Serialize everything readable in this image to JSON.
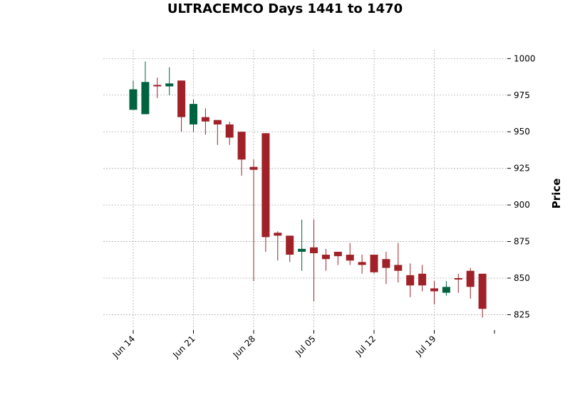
{
  "chart_data": {
    "type": "candlestick",
    "title": "ULTRACEMCO Days 1441 to 1470",
    "xlabel": "",
    "ylabel": "Price",
    "ylim": [
      815,
      1006
    ],
    "y_ticks": [
      825,
      850,
      875,
      900,
      925,
      950,
      975,
      1000
    ],
    "x_ticks": [
      {
        "label": "Jun 14",
        "index": 0
      },
      {
        "label": "Jun 21",
        "index": 5
      },
      {
        "label": "Jun 28",
        "index": 10
      },
      {
        "label": "Jul 05",
        "index": 15
      },
      {
        "label": "Jul 12",
        "index": 20
      },
      {
        "label": "Jul 19",
        "index": 25
      },
      {
        "label": "",
        "index": 30
      }
    ],
    "grid": true,
    "colors": {
      "up": "#006340",
      "down": "#a02128",
      "grid": "#b0b0b0"
    },
    "candles": [
      {
        "open": 965,
        "high": 985,
        "low": 965,
        "close": 979
      },
      {
        "open": 962,
        "high": 998,
        "low": 962,
        "close": 984
      },
      {
        "open": 982,
        "high": 987,
        "low": 973,
        "close": 981
      },
      {
        "open": 981,
        "high": 994,
        "low": 975,
        "close": 983
      },
      {
        "open": 985,
        "high": 985,
        "low": 950,
        "close": 960
      },
      {
        "open": 955,
        "high": 972,
        "low": 950,
        "close": 969
      },
      {
        "open": 960,
        "high": 966,
        "low": 948,
        "close": 957
      },
      {
        "open": 958,
        "high": 958,
        "low": 941,
        "close": 955
      },
      {
        "open": 955,
        "high": 957,
        "low": 941,
        "close": 946
      },
      {
        "open": 950,
        "high": 950,
        "low": 920,
        "close": 931
      },
      {
        "open": 926,
        "high": 931,
        "low": 848,
        "close": 924
      },
      {
        "open": 949,
        "high": 949,
        "low": 868,
        "close": 878
      },
      {
        "open": 881,
        "high": 882,
        "low": 862,
        "close": 879
      },
      {
        "open": 879,
        "high": 879,
        "low": 861,
        "close": 866
      },
      {
        "open": 868,
        "high": 890,
        "low": 855,
        "close": 870
      },
      {
        "open": 871,
        "high": 890,
        "low": 834,
        "close": 867
      },
      {
        "open": 866,
        "high": 870,
        "low": 855,
        "close": 863
      },
      {
        "open": 868,
        "high": 868,
        "low": 859,
        "close": 865
      },
      {
        "open": 866,
        "high": 874,
        "low": 859,
        "close": 862
      },
      {
        "open": 861,
        "high": 866,
        "low": 853,
        "close": 859
      },
      {
        "open": 866,
        "high": 866,
        "low": 853,
        "close": 854
      },
      {
        "open": 863,
        "high": 868,
        "low": 846,
        "close": 857
      },
      {
        "open": 859,
        "high": 874,
        "low": 847,
        "close": 855
      },
      {
        "open": 852,
        "high": 860,
        "low": 837,
        "close": 845
      },
      {
        "open": 853,
        "high": 859,
        "low": 841,
        "close": 845
      },
      {
        "open": 843,
        "high": 848,
        "low": 832,
        "close": 841
      },
      {
        "open": 840,
        "high": 848,
        "low": 838,
        "close": 844
      },
      {
        "open": 850,
        "high": 853,
        "low": 840,
        "close": 849
      },
      {
        "open": 855,
        "high": 857,
        "low": 836,
        "close": 844
      },
      {
        "open": 853,
        "high": 853,
        "low": 823,
        "close": 829
      }
    ]
  }
}
